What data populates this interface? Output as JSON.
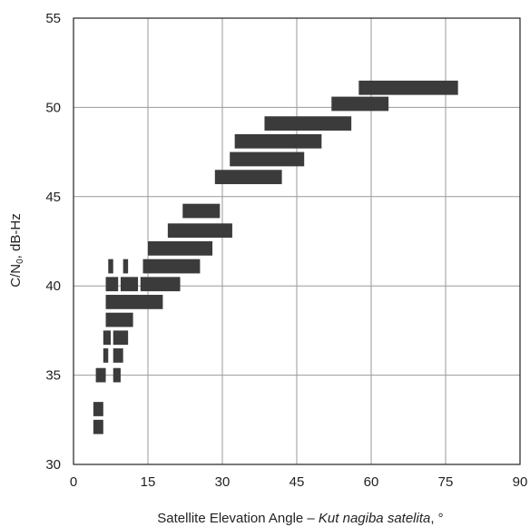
{
  "chart_data": {
    "type": "bar",
    "xlabel_main": "Satellite Elevation Angle – ",
    "xlabel_italic": "Kut nagiba satelita",
    "xlabel_suffix": ", °",
    "ylabel_main": "C/N",
    "ylabel_sub": "0",
    "ylabel_suffix": ", dB-Hz",
    "xlim": [
      0,
      90
    ],
    "ylim": [
      30,
      55
    ],
    "xticks": [
      "0",
      "15",
      "30",
      "45",
      "60",
      "75",
      "90"
    ],
    "yticks": [
      "30",
      "35",
      "40",
      "45",
      "50",
      "55"
    ],
    "grid": true,
    "bars": [
      {
        "x0": 57.5,
        "x1": 77.5,
        "y": 51.1
      },
      {
        "x0": 52.0,
        "x1": 63.5,
        "y": 50.2
      },
      {
        "x0": 38.5,
        "x1": 56.0,
        "y": 49.1
      },
      {
        "x0": 32.5,
        "x1": 50.0,
        "y": 48.1
      },
      {
        "x0": 31.5,
        "x1": 46.5,
        "y": 47.1
      },
      {
        "x0": 28.5,
        "x1": 42.0,
        "y": 46.1
      },
      {
        "x0": 22.0,
        "x1": 29.5,
        "y": 44.2
      },
      {
        "x0": 19.0,
        "x1": 32.0,
        "y": 43.1
      },
      {
        "x0": 15.0,
        "x1": 28.0,
        "y": 42.1
      },
      {
        "x0": 14.0,
        "x1": 25.5,
        "y": 41.1
      },
      {
        "x0": 13.5,
        "x1": 21.5,
        "y": 40.1
      },
      {
        "x0": 6.5,
        "x1": 18.0,
        "y": 39.1
      },
      {
        "x0": 6.5,
        "x1": 12.0,
        "y": 38.1
      },
      {
        "x0": 6.0,
        "x1": 7.5,
        "y": 37.1
      },
      {
        "x0": 8.0,
        "x1": 11.0,
        "y": 37.1
      },
      {
        "x0": 6.0,
        "x1": 7.0,
        "y": 36.1
      },
      {
        "x0": 8.0,
        "x1": 10.0,
        "y": 36.1
      },
      {
        "x0": 4.5,
        "x1": 6.5,
        "y": 35.0
      },
      {
        "x0": 8.0,
        "x1": 9.5,
        "y": 35.0
      },
      {
        "x0": 4.0,
        "x1": 6.0,
        "y": 33.1
      },
      {
        "x0": 4.0,
        "x1": 6.0,
        "y": 32.1
      },
      {
        "x0": 6.5,
        "x1": 9.0,
        "y": 40.1
      },
      {
        "x0": 9.5,
        "x1": 13.0,
        "y": 40.1
      },
      {
        "x0": 7.0,
        "x1": 8.0,
        "y": 41.1
      },
      {
        "x0": 10.0,
        "x1": 11.0,
        "y": 41.1
      }
    ],
    "bar_thickness": 0.8,
    "bar_color": "#3b3b3b"
  }
}
